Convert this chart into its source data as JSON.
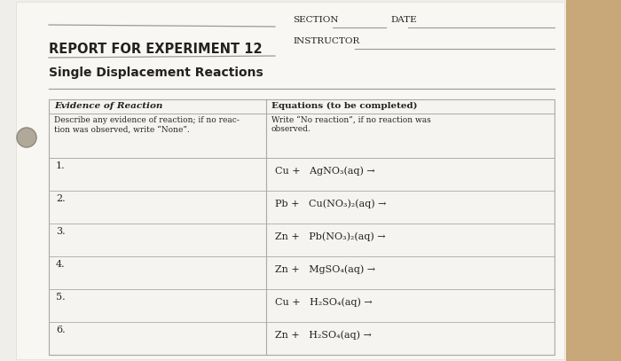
{
  "title": "REPORT FOR EXPERIMENT 12",
  "subtitle": "Single Displacement Reactions",
  "section_label": "SECTION",
  "date_label": "DATE",
  "instructor_label": "INSTRUCTOR",
  "col1_header": "Evidence of Reaction",
  "col2_header": "Equations (to be completed)",
  "col1_desc": "Describe any evidence of reaction; if no reac-\ntion was observed, write “None”.",
  "col2_desc": "Write “No reaction”, if no reaction was\nobserved.",
  "rows": [
    {
      "num": "1.",
      "eq": "Cu +   AgNO₃(aq) →"
    },
    {
      "num": "2.",
      "eq": "Pb +   Cu(NO₃)₂(aq) →"
    },
    {
      "num": "3.",
      "eq": "Zn +   Pb(NO₃)₂(aq) →"
    },
    {
      "num": "4.",
      "eq": "Zn +   MgSO₄(aq) →"
    },
    {
      "num": "5.",
      "eq": "Cu +   H₂SO₄(aq) →"
    },
    {
      "num": "6.",
      "eq": "Zn +   H₂SO₄(aq) →"
    }
  ],
  "page_color": "#f0eeea",
  "wood_color": "#c8a878",
  "line_color": "#999999",
  "text_color": "#222222",
  "table_line_color": "#aaaaaa"
}
